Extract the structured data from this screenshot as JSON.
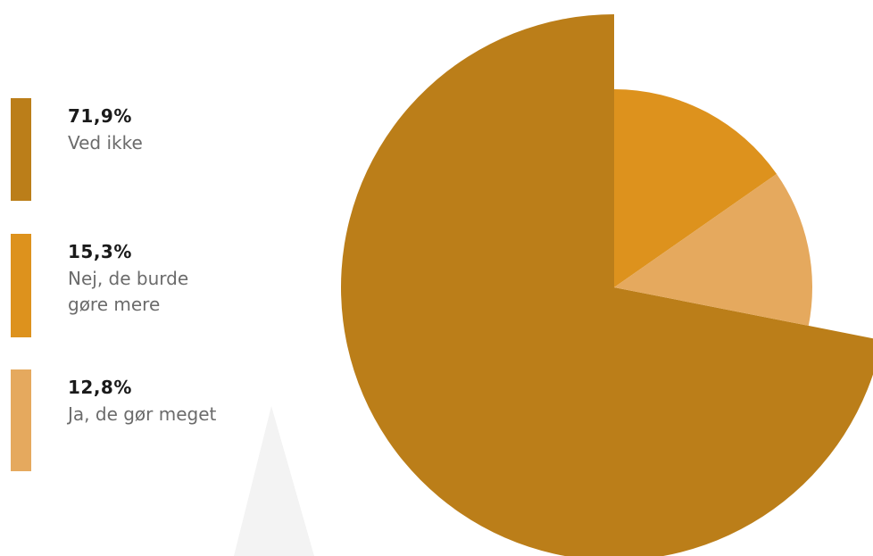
{
  "chart_data": {
    "type": "pie",
    "slices": [
      {
        "label": "Ved ikke",
        "value": 71.9,
        "value_text": "71,9%",
        "color": "#bb7e19"
      },
      {
        "label": "Nej, de burde gøre mere",
        "value": 15.3,
        "value_text": "15,3%",
        "color": "#dd921d"
      },
      {
        "label": "Ja, de gør meget",
        "value": 12.8,
        "value_text": "12,8%",
        "color": "#e5a95e"
      }
    ],
    "legend_position": "left",
    "exploded_slice": "Ved ikke"
  }
}
